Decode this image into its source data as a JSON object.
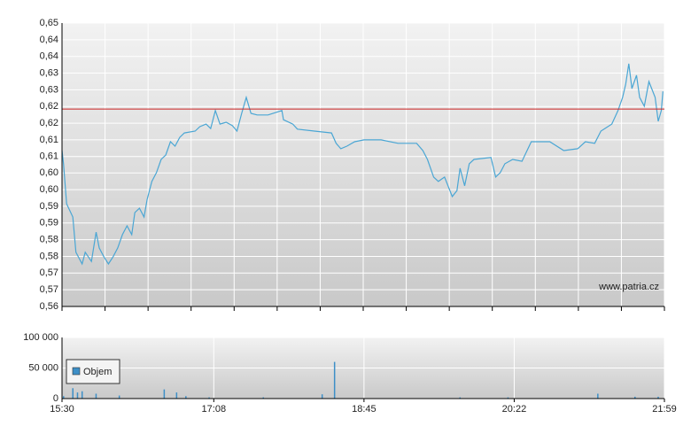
{
  "chart_data": [
    {
      "type": "line",
      "color": "#4aa6d4",
      "x": [
        "15:30",
        "15:31",
        "15:33",
        "15:37",
        "15:39",
        "15:43",
        "15:45",
        "15:49",
        "15:52",
        "15:54",
        "15:57",
        "16:00",
        "16:03",
        "16:06",
        "16:09",
        "16:12",
        "16:15",
        "16:17",
        "16:20",
        "16:23",
        "16:25",
        "16:28",
        "16:31",
        "16:34",
        "16:37",
        "16:40",
        "16:43",
        "16:46",
        "16:49",
        "16:56",
        "16:59",
        "17:03",
        "17:06",
        "17:09",
        "17:12",
        "17:16",
        "17:20",
        "17:23",
        "17:26",
        "17:29",
        "17:32",
        "17:36",
        "17:43",
        "17:52",
        "17:53",
        "17:59",
        "18:02",
        "18:13",
        "18:24",
        "18:27",
        "18:30",
        "18:34",
        "18:39",
        "18:45",
        "18:56",
        "19:07",
        "19:19",
        "19:23",
        "19:26",
        "19:30",
        "19:33",
        "19:37",
        "19:42",
        "19:45",
        "19:47",
        "19:50",
        "19:53",
        "19:56",
        "20:07",
        "20:10",
        "20:13",
        "20:16",
        "20:21",
        "20:27",
        "20:33",
        "20:45",
        "20:54",
        "21:03",
        "21:08",
        "21:14",
        "21:18",
        "21:25",
        "21:29",
        "21:32",
        "21:34",
        "21:36",
        "21:38",
        "21:41",
        "21:43",
        "21:46",
        "21:49",
        "21:53",
        "21:55",
        "21:57",
        "21:58"
      ],
      "values": [
        0.6095,
        0.6053,
        0.5926,
        0.5884,
        0.5772,
        0.5735,
        0.5772,
        0.5743,
        0.5836,
        0.5786,
        0.5758,
        0.5735,
        0.5758,
        0.5786,
        0.5828,
        0.5856,
        0.5828,
        0.5898,
        0.5912,
        0.5884,
        0.594,
        0.5997,
        0.6025,
        0.6067,
        0.6081,
        0.6123,
        0.6109,
        0.6137,
        0.6151,
        0.6157,
        0.6171,
        0.6179,
        0.6165,
        0.6222,
        0.6179,
        0.6185,
        0.6174,
        0.6157,
        0.6213,
        0.6264,
        0.6213,
        0.6208,
        0.6208,
        0.6222,
        0.6193,
        0.6179,
        0.6163,
        0.6157,
        0.6151,
        0.6118,
        0.6101,
        0.6109,
        0.6123,
        0.6129,
        0.6129,
        0.6118,
        0.6118,
        0.6095,
        0.6067,
        0.6011,
        0.5997,
        0.6011,
        0.5949,
        0.5968,
        0.6039,
        0.5983,
        0.6053,
        0.6067,
        0.6073,
        0.6011,
        0.6025,
        0.6053,
        0.6067,
        0.6061,
        0.6123,
        0.6123,
        0.6095,
        0.6101,
        0.6123,
        0.6118,
        0.6157,
        0.6179,
        0.6222,
        0.6264,
        0.6306,
        0.6371,
        0.6292,
        0.6334,
        0.6264,
        0.6236,
        0.6314,
        0.6264,
        0.6188,
        0.6222,
        0.6283
      ],
      "xlim": [
        "15:30",
        "21:59"
      ],
      "ylim": [
        0.56,
        0.65
      ],
      "yticks": [
        {
          "value": 0.65,
          "label": "0,65"
        },
        {
          "value": 0.6447,
          "label": "0,64"
        },
        {
          "value": 0.6394,
          "label": "0,64"
        },
        {
          "value": 0.6341,
          "label": "0,63"
        },
        {
          "value": 0.6288,
          "label": "0,63"
        },
        {
          "value": 0.6235,
          "label": "0,62"
        },
        {
          "value": 0.6182,
          "label": "0,62"
        },
        {
          "value": 0.6129,
          "label": "0,61"
        },
        {
          "value": 0.6076,
          "label": "0,61"
        },
        {
          "value": 0.6024,
          "label": "0,60"
        },
        {
          "value": 0.5971,
          "label": "0,60"
        },
        {
          "value": 0.5918,
          "label": "0,59"
        },
        {
          "value": 0.5865,
          "label": "0,59"
        },
        {
          "value": 0.5812,
          "label": "0,58"
        },
        {
          "value": 0.5759,
          "label": "0,58"
        },
        {
          "value": 0.5706,
          "label": "0,57"
        },
        {
          "value": 0.5653,
          "label": "0,57"
        },
        {
          "value": 0.56,
          "label": "0,56"
        }
      ],
      "reference_line": {
        "value": 0.6227,
        "color": "#cc2222"
      },
      "grid": true,
      "annotation": "www.patria.cz"
    },
    {
      "type": "bar",
      "series": [
        {
          "name": "Objem",
          "color": "#3d8fc7",
          "x": [
            "15:31",
            "15:37",
            "15:40",
            "15:43",
            "15:52",
            "16:07",
            "16:36",
            "16:44",
            "16:50",
            "17:05",
            "17:40",
            "18:18",
            "18:26",
            "19:47",
            "20:18",
            "21:16",
            "21:40",
            "21:55"
          ],
          "values": [
            4000,
            17000,
            10000,
            12000,
            8000,
            5000,
            15000,
            10000,
            4000,
            2000,
            2000,
            7000,
            60000,
            2000,
            2000,
            8000,
            3000,
            3000
          ]
        }
      ],
      "xlim": [
        "15:30",
        "21:59"
      ],
      "xticks": [
        "15:30",
        "17:08",
        "18:45",
        "20:22",
        "21:59"
      ],
      "ylim": [
        0,
        100000
      ],
      "yticks": [
        {
          "value": 100000,
          "label": "100 000"
        },
        {
          "value": 50000,
          "label": "50 000"
        },
        0
      ],
      "grid": true,
      "legend": "top-left"
    }
  ]
}
